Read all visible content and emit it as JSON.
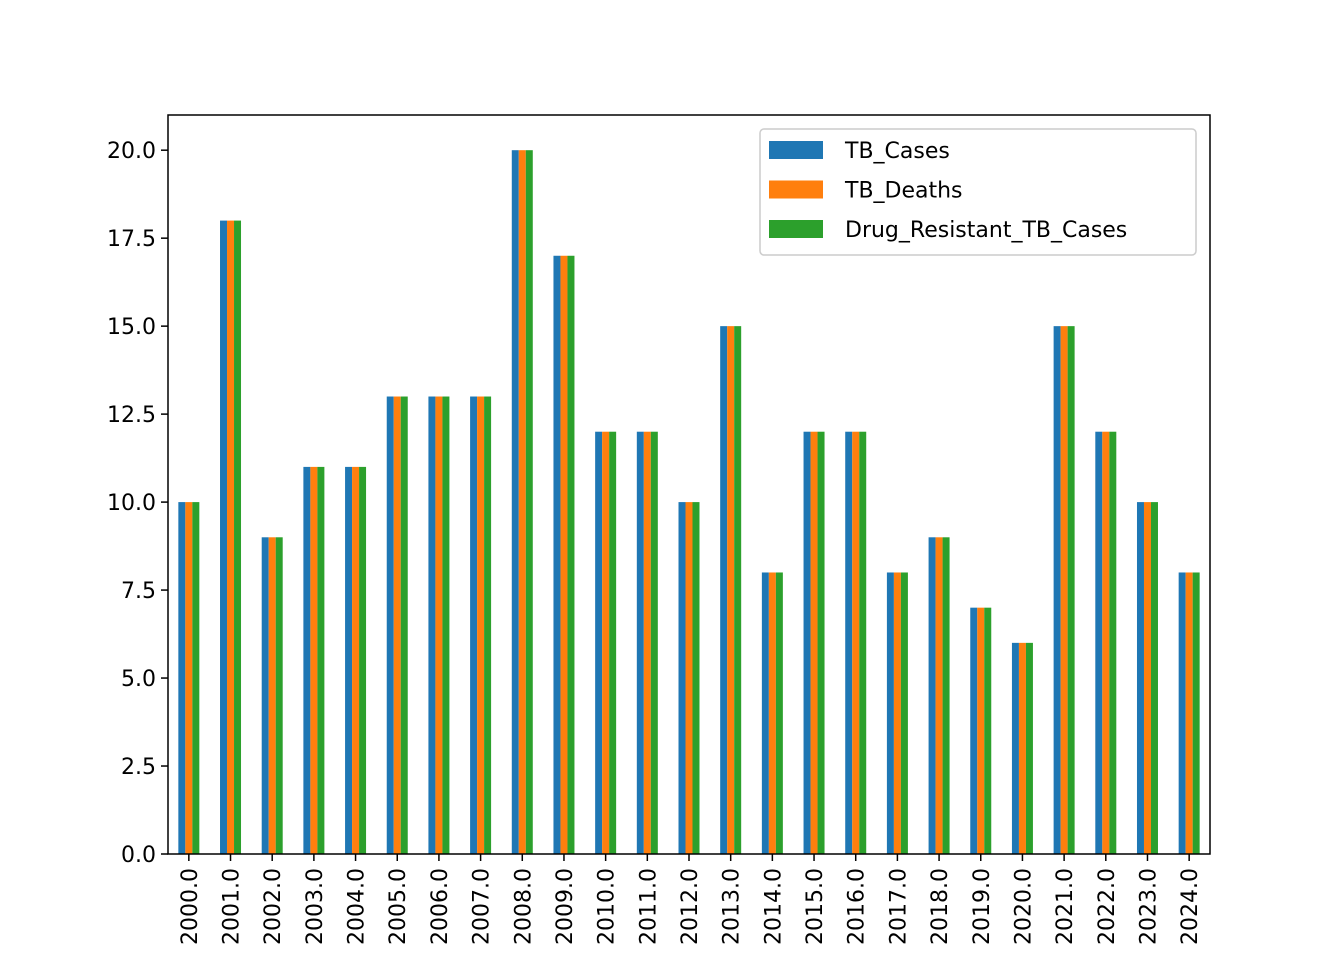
{
  "chart_data": {
    "type": "bar",
    "title": "",
    "xlabel": "",
    "ylabel": "",
    "categories": [
      "2000.0",
      "2001.0",
      "2002.0",
      "2003.0",
      "2004.0",
      "2005.0",
      "2006.0",
      "2007.0",
      "2008.0",
      "2009.0",
      "2010.0",
      "2011.0",
      "2012.0",
      "2013.0",
      "2014.0",
      "2015.0",
      "2016.0",
      "2017.0",
      "2018.0",
      "2019.0",
      "2020.0",
      "2021.0",
      "2022.0",
      "2023.0",
      "2024.0"
    ],
    "series": [
      {
        "name": "TB_Cases",
        "color": "#1f77b4",
        "values": [
          10,
          18,
          9,
          11,
          11,
          13,
          13,
          13,
          20,
          17,
          12,
          12,
          10,
          15,
          8,
          12,
          12,
          8,
          9,
          7,
          6,
          15,
          12,
          10,
          8
        ]
      },
      {
        "name": "TB_Deaths",
        "color": "#ff7f0e",
        "values": [
          10,
          18,
          9,
          11,
          11,
          13,
          13,
          13,
          20,
          17,
          12,
          12,
          10,
          15,
          8,
          12,
          12,
          8,
          9,
          7,
          6,
          15,
          12,
          10,
          8
        ]
      },
      {
        "name": "Drug_Resistant_TB_Cases",
        "color": "#2ca02c",
        "values": [
          10,
          18,
          9,
          11,
          11,
          13,
          13,
          13,
          20,
          17,
          12,
          12,
          10,
          15,
          8,
          12,
          12,
          8,
          9,
          7,
          6,
          15,
          12,
          10,
          8
        ]
      }
    ],
    "ylim": [
      0,
      21
    ],
    "yticks": [
      "0.0",
      "2.5",
      "5.0",
      "7.5",
      "10.0",
      "12.5",
      "15.0",
      "17.5",
      "20.0"
    ],
    "ytick_values": [
      0,
      2.5,
      5,
      7.5,
      10,
      12.5,
      15,
      17.5,
      20
    ],
    "grid": false,
    "legend_position": "top-right"
  }
}
